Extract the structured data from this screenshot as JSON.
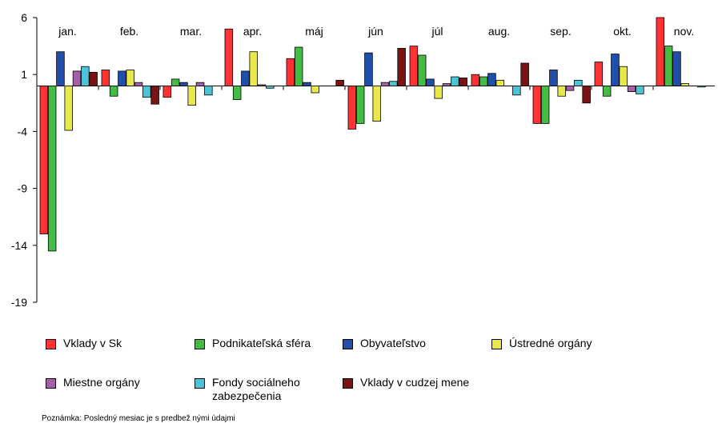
{
  "chart_data": {
    "type": "bar",
    "title": "",
    "xlabel": "",
    "ylabel": "",
    "ylim": [
      -19,
      6
    ],
    "yticks": [
      6,
      1,
      -4,
      -9,
      -14,
      -19
    ],
    "categories": [
      "jan.",
      "feb.",
      "mar.",
      "apr.",
      "máj",
      "jún",
      "júl",
      "aug.",
      "sep.",
      "okt.",
      "nov."
    ],
    "series": [
      {
        "name": "Vklady v Sk",
        "color": "#ff3333",
        "values": [
          -13.0,
          1.4,
          -1.0,
          5.0,
          2.4,
          -3.8,
          3.5,
          1.0,
          -3.3,
          2.1,
          6.0
        ]
      },
      {
        "name": "Podnikateľská sféra",
        "color": "#44bb44",
        "values": [
          -14.5,
          -0.9,
          0.6,
          -1.2,
          3.4,
          -3.3,
          2.7,
          0.8,
          -3.3,
          -0.9,
          3.5
        ]
      },
      {
        "name": "Obyvateľstvo",
        "color": "#1f4faa",
        "values": [
          3.0,
          1.3,
          0.3,
          1.3,
          0.3,
          2.9,
          0.6,
          1.1,
          1.4,
          2.8,
          3.0
        ]
      },
      {
        "name": "Ústredné orgány",
        "color": "#e8e84a",
        "values": [
          -3.9,
          1.4,
          -1.7,
          3.0,
          -0.6,
          -3.1,
          -1.1,
          0.5,
          -0.9,
          1.7,
          0.2
        ]
      },
      {
        "name": "Miestne orgány",
        "color": "#a560a8",
        "values": [
          1.3,
          0.3,
          0.3,
          0.1,
          0.0,
          0.3,
          0.2,
          0.0,
          -0.4,
          -0.5,
          0.0
        ]
      },
      {
        "name": "Fondy sociálneho zabezpečenia",
        "color": "#4cc4d6",
        "values": [
          1.7,
          -1.0,
          -0.8,
          -0.2,
          0.0,
          0.4,
          0.8,
          -0.8,
          0.5,
          -0.7,
          -0.1
        ]
      },
      {
        "name": "Vklady v cudzej mene",
        "color": "#7a1414",
        "values": [
          1.2,
          -1.6,
          0.0,
          0.0,
          0.5,
          3.3,
          0.7,
          2.0,
          -1.5,
          0.0,
          0.0
        ]
      }
    ],
    "grid": false,
    "legend_position": "bottom"
  },
  "legend": {
    "row1": [
      "Vklady v Sk",
      "Podnikateľská sféra",
      "Obyvateľstvo",
      "Ústredné orgány"
    ],
    "row2": [
      "Miestne orgány",
      "Fondy sociálneho zabezpečenia",
      "Vklady v cudzej mene"
    ]
  },
  "note": "Poznámka: Posledný mesiac je s predbež nými údajmi"
}
